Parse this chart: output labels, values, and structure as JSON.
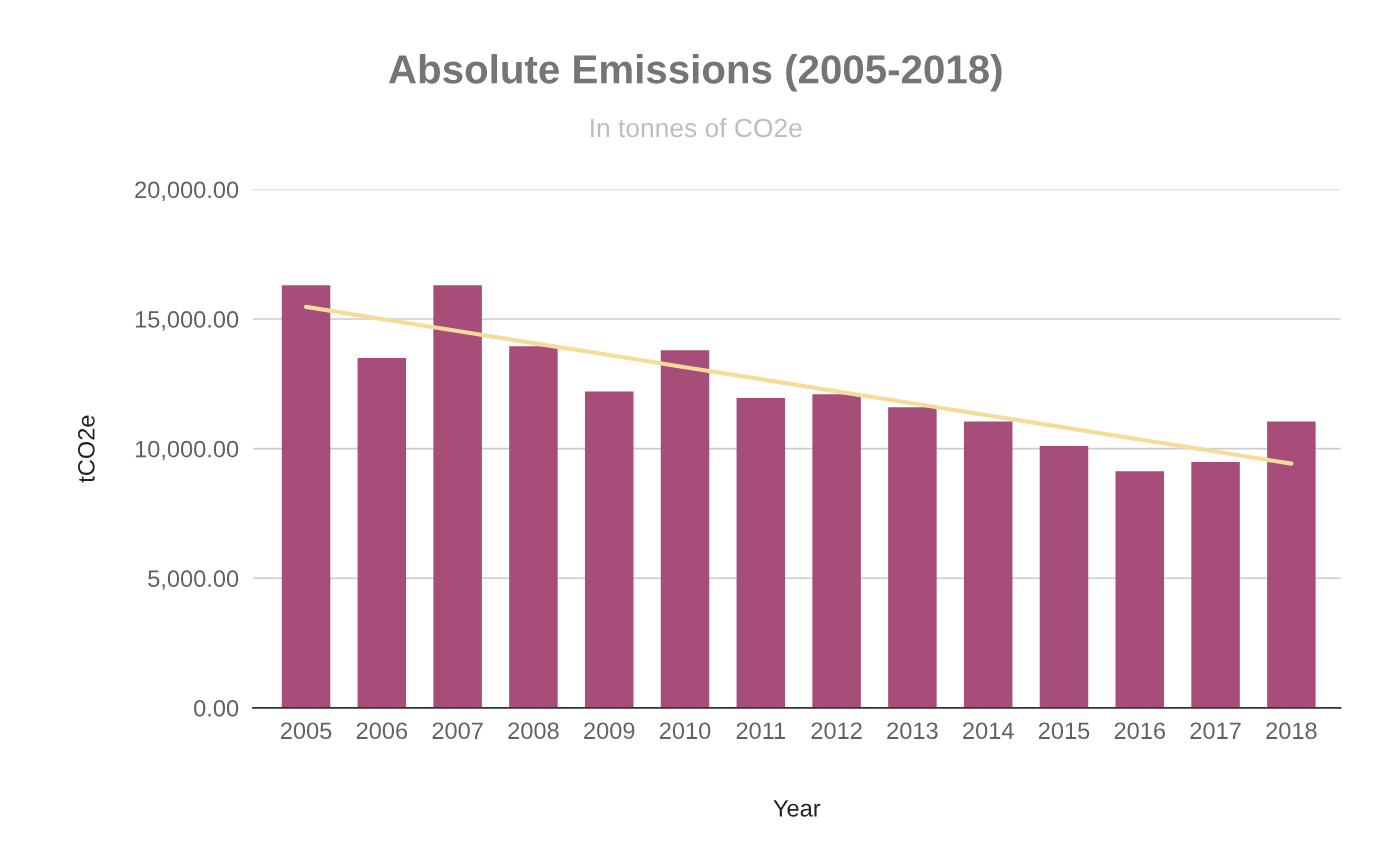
{
  "chart_data": {
    "type": "bar",
    "title": "Absolute Emissions (2005-2018)",
    "subtitle": "In tonnes of CO2e",
    "xlabel": "Year",
    "ylabel": "tCO2e",
    "categories": [
      "2005",
      "2006",
      "2007",
      "2008",
      "2009",
      "2010",
      "2011",
      "2012",
      "2013",
      "2014",
      "2015",
      "2016",
      "2017",
      "2018"
    ],
    "series": [
      {
        "color": "#a64d79",
        "values": [
          16300,
          13500,
          16300,
          13950,
          12200,
          13800,
          11950,
          12100,
          11600,
          11050,
          10100,
          9130,
          9480,
          11050
        ]
      },
      {
        "type": "line",
        "color": "#f6dc9a",
        "values": [
          15470,
          15000,
          14540,
          14070,
          13610,
          13140,
          12680,
          12210,
          11750,
          11280,
          10820,
          10350,
          9890,
          9420
        ]
      }
    ],
    "ylim": [
      0,
      20000
    ],
    "yticks": [
      {
        "value": 0,
        "label": "0.00"
      },
      {
        "value": 5000,
        "label": "5,000.00"
      },
      {
        "value": 10000,
        "label": "10,000.00"
      },
      {
        "value": 15000,
        "label": "15,000.00"
      },
      {
        "value": 20000,
        "label": "20,000.00"
      }
    ],
    "grid": "y",
    "legend": false
  }
}
